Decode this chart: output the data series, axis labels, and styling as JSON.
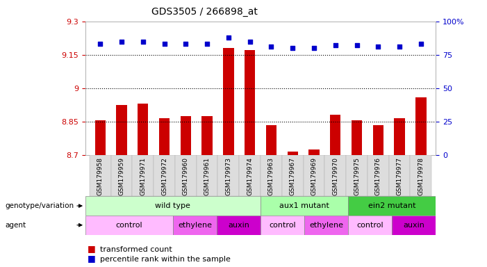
{
  "title": "GDS3505 / 266898_at",
  "samples": [
    "GSM179958",
    "GSM179959",
    "GSM179971",
    "GSM179972",
    "GSM179960",
    "GSM179961",
    "GSM179973",
    "GSM179974",
    "GSM179963",
    "GSM179967",
    "GSM179969",
    "GSM179970",
    "GSM179975",
    "GSM179976",
    "GSM179977",
    "GSM179978"
  ],
  "bar_values": [
    8.855,
    8.925,
    8.93,
    8.865,
    8.875,
    8.875,
    9.18,
    9.17,
    8.835,
    8.715,
    8.725,
    8.88,
    8.855,
    8.835,
    8.865,
    8.96
  ],
  "percentile_values": [
    83,
    85,
    85,
    83,
    83,
    83,
    88,
    85,
    81,
    80,
    80,
    82,
    82,
    81,
    81,
    83
  ],
  "ylim_left": [
    8.7,
    9.3
  ],
  "ylim_right": [
    0,
    100
  ],
  "yticks_left": [
    8.7,
    8.85,
    9.0,
    9.15,
    9.3
  ],
  "yticks_right": [
    0,
    25,
    50,
    75,
    100
  ],
  "ytick_labels_left": [
    "8.7",
    "8.85",
    "9",
    "9.15",
    "9.3"
  ],
  "ytick_labels_right": [
    "0",
    "25",
    "50",
    "75",
    "100%"
  ],
  "hlines": [
    8.85,
    9.0,
    9.15
  ],
  "bar_color": "#cc0000",
  "dot_color": "#0000cc",
  "bar_bottom": 8.7,
  "genotype_groups": [
    {
      "label": "wild type",
      "start": 0,
      "end": 7,
      "color": "#ccffcc"
    },
    {
      "label": "aux1 mutant",
      "start": 8,
      "end": 11,
      "color": "#aaffaa"
    },
    {
      "label": "ein2 mutant",
      "start": 12,
      "end": 15,
      "color": "#44cc44"
    }
  ],
  "agent_groups": [
    {
      "label": "control",
      "start": 0,
      "end": 3,
      "color": "#ffbbff"
    },
    {
      "label": "ethylene",
      "start": 4,
      "end": 5,
      "color": "#ee66ee"
    },
    {
      "label": "auxin",
      "start": 6,
      "end": 7,
      "color": "#cc00cc"
    },
    {
      "label": "control",
      "start": 8,
      "end": 9,
      "color": "#ffbbff"
    },
    {
      "label": "ethylene",
      "start": 10,
      "end": 11,
      "color": "#ee66ee"
    },
    {
      "label": "control",
      "start": 12,
      "end": 13,
      "color": "#ffbbff"
    },
    {
      "label": "auxin",
      "start": 14,
      "end": 15,
      "color": "#cc00cc"
    }
  ],
  "legend_items": [
    {
      "label": "transformed count",
      "color": "#cc0000"
    },
    {
      "label": "percentile rank within the sample",
      "color": "#0000cc"
    }
  ],
  "bg_color": "#ffffff"
}
